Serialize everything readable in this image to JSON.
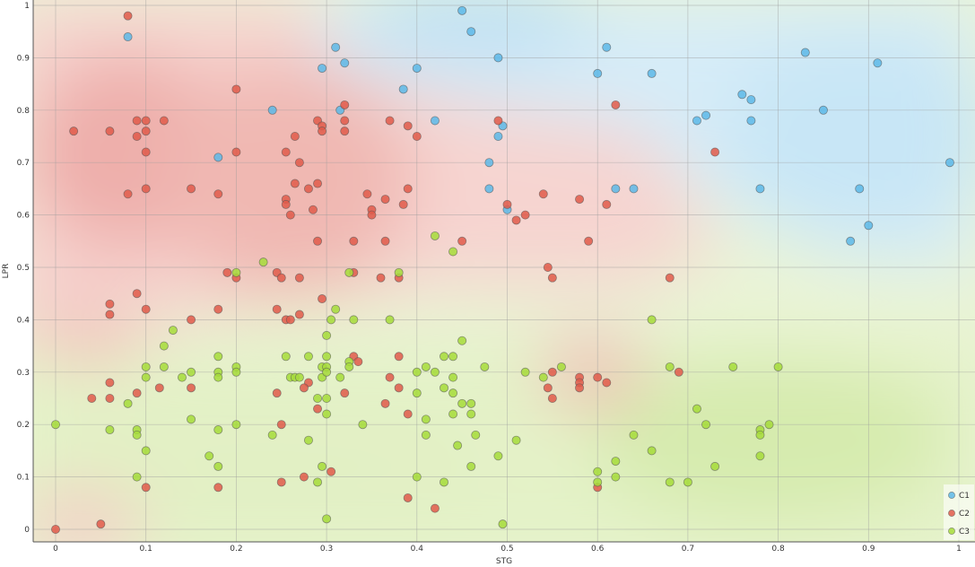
{
  "chart_data": {
    "type": "scatter",
    "title": "",
    "xlabel": "STG",
    "ylabel": "LPR",
    "xlim": [
      -0.02,
      1.0
    ],
    "ylim": [
      -0.02,
      1.0
    ],
    "xticks": [
      "0",
      "0.1",
      "0.2",
      "0.3",
      "0.4",
      "0.5",
      "0.6",
      "0.7",
      "0.8",
      "0.9",
      "1"
    ],
    "yticks": [
      "0",
      "0.1",
      "0.2",
      "0.3",
      "0.4",
      "0.5",
      "0.6",
      "0.7",
      "0.8",
      "0.9",
      "1"
    ],
    "grid": true,
    "legend_position": "bottom-right",
    "background": "decision-region shading per class",
    "series": [
      {
        "name": "C1",
        "color": "#5db8e8",
        "points": [
          [
            0.08,
            0.94
          ],
          [
            0.18,
            0.71
          ],
          [
            0.24,
            0.8
          ],
          [
            0.295,
            0.88
          ],
          [
            0.31,
            0.92
          ],
          [
            0.315,
            0.8
          ],
          [
            0.32,
            0.89
          ],
          [
            0.385,
            0.84
          ],
          [
            0.4,
            0.88
          ],
          [
            0.42,
            0.78
          ],
          [
            0.45,
            0.99
          ],
          [
            0.46,
            0.95
          ],
          [
            0.48,
            0.7
          ],
          [
            0.48,
            0.65
          ],
          [
            0.49,
            0.9
          ],
          [
            0.49,
            0.75
          ],
          [
            0.495,
            0.77
          ],
          [
            0.5,
            0.61
          ],
          [
            0.6,
            0.87
          ],
          [
            0.61,
            0.92
          ],
          [
            0.62,
            0.65
          ],
          [
            0.64,
            0.65
          ],
          [
            0.66,
            0.87
          ],
          [
            0.71,
            0.78
          ],
          [
            0.72,
            0.79
          ],
          [
            0.76,
            0.83
          ],
          [
            0.77,
            0.82
          ],
          [
            0.77,
            0.78
          ],
          [
            0.78,
            0.65
          ],
          [
            0.83,
            0.91
          ],
          [
            0.85,
            0.8
          ],
          [
            0.88,
            0.55
          ],
          [
            0.89,
            0.65
          ],
          [
            0.9,
            0.58
          ],
          [
            0.91,
            0.89
          ],
          [
            0.99,
            0.7
          ]
        ]
      },
      {
        "name": "C2",
        "color": "#e05a4a",
        "points": [
          [
            0.08,
            0.98
          ],
          [
            0.02,
            0.76
          ],
          [
            0.06,
            0.76
          ],
          [
            0.09,
            0.78
          ],
          [
            0.1,
            0.78
          ],
          [
            0.09,
            0.75
          ],
          [
            0.1,
            0.76
          ],
          [
            0.12,
            0.78
          ],
          [
            0.1,
            0.72
          ],
          [
            0.08,
            0.64
          ],
          [
            0.1,
            0.65
          ],
          [
            0.15,
            0.65
          ],
          [
            0.18,
            0.64
          ],
          [
            0.2,
            0.84
          ],
          [
            0.2,
            0.72
          ],
          [
            0.19,
            0.49
          ],
          [
            0.2,
            0.48
          ],
          [
            0.09,
            0.45
          ],
          [
            0.06,
            0.43
          ],
          [
            0.06,
            0.41
          ],
          [
            0.1,
            0.42
          ],
          [
            0.15,
            0.4
          ],
          [
            0.18,
            0.42
          ],
          [
            0.06,
            0.28
          ],
          [
            0.06,
            0.25
          ],
          [
            0.04,
            0.25
          ],
          [
            0.09,
            0.26
          ],
          [
            0.115,
            0.27
          ],
          [
            0.15,
            0.27
          ],
          [
            0.1,
            0.08
          ],
          [
            0.18,
            0.08
          ],
          [
            0.0,
            0.0
          ],
          [
            0.05,
            0.01
          ],
          [
            0.265,
            0.75
          ],
          [
            0.255,
            0.72
          ],
          [
            0.27,
            0.7
          ],
          [
            0.265,
            0.66
          ],
          [
            0.28,
            0.65
          ],
          [
            0.29,
            0.66
          ],
          [
            0.255,
            0.63
          ],
          [
            0.255,
            0.62
          ],
          [
            0.26,
            0.6
          ],
          [
            0.285,
            0.61
          ],
          [
            0.29,
            0.78
          ],
          [
            0.295,
            0.77
          ],
          [
            0.295,
            0.76
          ],
          [
            0.32,
            0.81
          ],
          [
            0.32,
            0.78
          ],
          [
            0.32,
            0.76
          ],
          [
            0.29,
            0.55
          ],
          [
            0.33,
            0.55
          ],
          [
            0.345,
            0.64
          ],
          [
            0.35,
            0.61
          ],
          [
            0.35,
            0.6
          ],
          [
            0.365,
            0.63
          ],
          [
            0.37,
            0.78
          ],
          [
            0.39,
            0.77
          ],
          [
            0.4,
            0.75
          ],
          [
            0.385,
            0.62
          ],
          [
            0.39,
            0.65
          ],
          [
            0.365,
            0.55
          ],
          [
            0.245,
            0.49
          ],
          [
            0.25,
            0.48
          ],
          [
            0.27,
            0.48
          ],
          [
            0.245,
            0.42
          ],
          [
            0.255,
            0.4
          ],
          [
            0.26,
            0.4
          ],
          [
            0.27,
            0.41
          ],
          [
            0.295,
            0.44
          ],
          [
            0.33,
            0.49
          ],
          [
            0.36,
            0.48
          ],
          [
            0.38,
            0.48
          ],
          [
            0.33,
            0.33
          ],
          [
            0.335,
            0.32
          ],
          [
            0.38,
            0.33
          ],
          [
            0.37,
            0.29
          ],
          [
            0.365,
            0.24
          ],
          [
            0.38,
            0.27
          ],
          [
            0.39,
            0.22
          ],
          [
            0.32,
            0.26
          ],
          [
            0.29,
            0.23
          ],
          [
            0.28,
            0.28
          ],
          [
            0.275,
            0.27
          ],
          [
            0.245,
            0.26
          ],
          [
            0.25,
            0.2
          ],
          [
            0.25,
            0.09
          ],
          [
            0.275,
            0.1
          ],
          [
            0.305,
            0.11
          ],
          [
            0.39,
            0.06
          ],
          [
            0.42,
            0.04
          ],
          [
            0.45,
            0.55
          ],
          [
            0.49,
            0.78
          ],
          [
            0.5,
            0.62
          ],
          [
            0.51,
            0.59
          ],
          [
            0.52,
            0.6
          ],
          [
            0.54,
            0.64
          ],
          [
            0.545,
            0.5
          ],
          [
            0.55,
            0.48
          ],
          [
            0.58,
            0.63
          ],
          [
            0.59,
            0.55
          ],
          [
            0.61,
            0.62
          ],
          [
            0.62,
            0.81
          ],
          [
            0.68,
            0.48
          ],
          [
            0.73,
            0.72
          ],
          [
            0.55,
            0.3
          ],
          [
            0.545,
            0.27
          ],
          [
            0.55,
            0.25
          ],
          [
            0.58,
            0.29
          ],
          [
            0.58,
            0.28
          ],
          [
            0.58,
            0.27
          ],
          [
            0.6,
            0.29
          ],
          [
            0.61,
            0.28
          ],
          [
            0.69,
            0.3
          ],
          [
            0.6,
            0.08
          ]
        ]
      },
      {
        "name": "C3",
        "color": "#a6dc3a",
        "points": [
          [
            0.0,
            0.2
          ],
          [
            0.06,
            0.19
          ],
          [
            0.08,
            0.24
          ],
          [
            0.09,
            0.19
          ],
          [
            0.09,
            0.18
          ],
          [
            0.1,
            0.31
          ],
          [
            0.1,
            0.29
          ],
          [
            0.1,
            0.15
          ],
          [
            0.09,
            0.1
          ],
          [
            0.12,
            0.35
          ],
          [
            0.12,
            0.31
          ],
          [
            0.13,
            0.38
          ],
          [
            0.14,
            0.29
          ],
          [
            0.15,
            0.3
          ],
          [
            0.15,
            0.21
          ],
          [
            0.17,
            0.14
          ],
          [
            0.18,
            0.33
          ],
          [
            0.18,
            0.3
          ],
          [
            0.18,
            0.29
          ],
          [
            0.18,
            0.19
          ],
          [
            0.18,
            0.12
          ],
          [
            0.2,
            0.31
          ],
          [
            0.2,
            0.3
          ],
          [
            0.2,
            0.2
          ],
          [
            0.2,
            0.49
          ],
          [
            0.23,
            0.51
          ],
          [
            0.24,
            0.18
          ],
          [
            0.255,
            0.33
          ],
          [
            0.26,
            0.29
          ],
          [
            0.265,
            0.29
          ],
          [
            0.27,
            0.29
          ],
          [
            0.28,
            0.33
          ],
          [
            0.28,
            0.17
          ],
          [
            0.29,
            0.25
          ],
          [
            0.29,
            0.09
          ],
          [
            0.295,
            0.31
          ],
          [
            0.295,
            0.29
          ],
          [
            0.295,
            0.12
          ],
          [
            0.3,
            0.37
          ],
          [
            0.3,
            0.33
          ],
          [
            0.3,
            0.31
          ],
          [
            0.3,
            0.3
          ],
          [
            0.3,
            0.25
          ],
          [
            0.3,
            0.22
          ],
          [
            0.3,
            0.02
          ],
          [
            0.305,
            0.4
          ],
          [
            0.31,
            0.42
          ],
          [
            0.315,
            0.29
          ],
          [
            0.325,
            0.32
          ],
          [
            0.325,
            0.31
          ],
          [
            0.325,
            0.49
          ],
          [
            0.33,
            0.4
          ],
          [
            0.34,
            0.2
          ],
          [
            0.37,
            0.4
          ],
          [
            0.38,
            0.49
          ],
          [
            0.4,
            0.3
          ],
          [
            0.4,
            0.26
          ],
          [
            0.4,
            0.1
          ],
          [
            0.41,
            0.31
          ],
          [
            0.41,
            0.21
          ],
          [
            0.41,
            0.18
          ],
          [
            0.42,
            0.3
          ],
          [
            0.42,
            0.56
          ],
          [
            0.43,
            0.33
          ],
          [
            0.43,
            0.27
          ],
          [
            0.43,
            0.09
          ],
          [
            0.44,
            0.33
          ],
          [
            0.44,
            0.29
          ],
          [
            0.44,
            0.26
          ],
          [
            0.44,
            0.22
          ],
          [
            0.44,
            0.53
          ],
          [
            0.445,
            0.16
          ],
          [
            0.45,
            0.36
          ],
          [
            0.45,
            0.24
          ],
          [
            0.46,
            0.24
          ],
          [
            0.46,
            0.22
          ],
          [
            0.46,
            0.12
          ],
          [
            0.465,
            0.18
          ],
          [
            0.475,
            0.31
          ],
          [
            0.49,
            0.14
          ],
          [
            0.495,
            0.01
          ],
          [
            0.51,
            0.17
          ],
          [
            0.52,
            0.3
          ],
          [
            0.54,
            0.29
          ],
          [
            0.56,
            0.31
          ],
          [
            0.6,
            0.11
          ],
          [
            0.6,
            0.09
          ],
          [
            0.62,
            0.13
          ],
          [
            0.62,
            0.1
          ],
          [
            0.64,
            0.18
          ],
          [
            0.66,
            0.4
          ],
          [
            0.66,
            0.15
          ],
          [
            0.68,
            0.31
          ],
          [
            0.68,
            0.09
          ],
          [
            0.7,
            0.09
          ],
          [
            0.71,
            0.23
          ],
          [
            0.72,
            0.2
          ],
          [
            0.73,
            0.12
          ],
          [
            0.75,
            0.31
          ],
          [
            0.78,
            0.19
          ],
          [
            0.78,
            0.18
          ],
          [
            0.78,
            0.14
          ],
          [
            0.79,
            0.2
          ],
          [
            0.8,
            0.31
          ]
        ]
      }
    ]
  }
}
